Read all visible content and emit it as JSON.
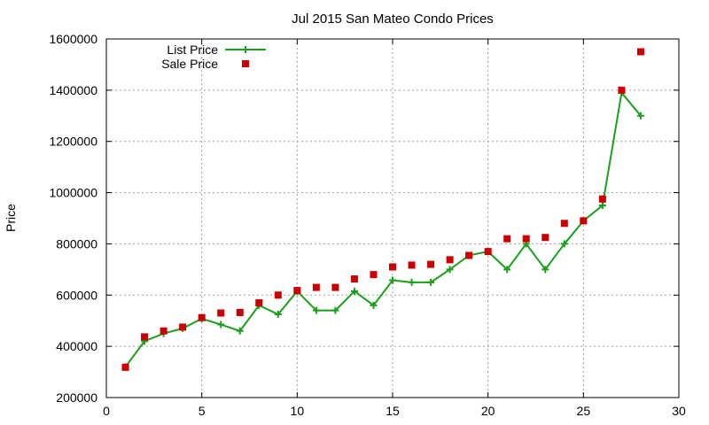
{
  "chart_data": {
    "type": "line",
    "title": "Jul 2015 San Mateo Condo Prices",
    "xlabel": "",
    "ylabel": "Price",
    "xlim": [
      0,
      30
    ],
    "ylim": [
      200000,
      1600000
    ],
    "x_ticks": [
      "0",
      "5",
      "10",
      "15",
      "20",
      "25",
      "30"
    ],
    "y_ticks": [
      "200000",
      "400000",
      "600000",
      "800000",
      "1000000",
      "1200000",
      "1400000",
      "1600000"
    ],
    "grid": true,
    "legend_position": "top-left",
    "series": [
      {
        "name": "List Price",
        "style": "line+plus",
        "color": "#1aa01a",
        "x": [
          1,
          2,
          3,
          4,
          5,
          6,
          7,
          8,
          9,
          10,
          11,
          12,
          13,
          14,
          15,
          16,
          17,
          18,
          19,
          20,
          21,
          22,
          23,
          24,
          25,
          26,
          27,
          28
        ],
        "y": [
          320000,
          420000,
          450000,
          470000,
          508000,
          485000,
          460000,
          560000,
          525000,
          615000,
          540000,
          540000,
          615000,
          560000,
          658000,
          650000,
          650000,
          700000,
          755000,
          770000,
          700000,
          800000,
          700000,
          800000,
          890000,
          950000,
          1390000,
          1300000
        ]
      },
      {
        "name": "Sale Price",
        "style": "square-markers",
        "color": "#cc0000",
        "x": [
          1,
          2,
          3,
          4,
          5,
          6,
          7,
          8,
          9,
          10,
          11,
          12,
          13,
          14,
          15,
          16,
          17,
          18,
          19,
          20,
          21,
          22,
          23,
          24,
          25,
          26,
          27,
          28
        ],
        "y": [
          318000,
          437000,
          460000,
          475000,
          512000,
          530000,
          532000,
          570000,
          600000,
          618000,
          630000,
          630000,
          663000,
          680000,
          710000,
          717000,
          720000,
          738000,
          755000,
          770000,
          820000,
          820000,
          825000,
          880000,
          890000,
          975000,
          1400000,
          1550000
        ]
      }
    ]
  }
}
